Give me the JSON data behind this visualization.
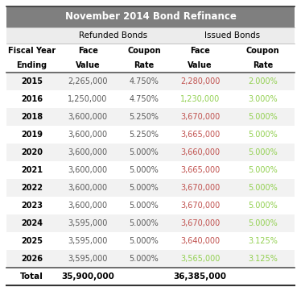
{
  "title": "November 2014 Bond Refinance",
  "title_bg": "#7f7f7f",
  "title_color": "#ffffff",
  "rows": [
    [
      "2015",
      "2,265,000",
      "4.750%",
      "2,280,000",
      "2.000%"
    ],
    [
      "2016",
      "1,250,000",
      "4.750%",
      "1,230,000",
      "3.000%"
    ],
    [
      "2018",
      "3,600,000",
      "5.250%",
      "3,670,000",
      "5.000%"
    ],
    [
      "2019",
      "3,600,000",
      "5.250%",
      "3,665,000",
      "5.000%"
    ],
    [
      "2020",
      "3,600,000",
      "5.000%",
      "3,660,000",
      "5.000%"
    ],
    [
      "2021",
      "3,600,000",
      "5.000%",
      "3,665,000",
      "5.000%"
    ],
    [
      "2022",
      "3,600,000",
      "5.000%",
      "3,670,000",
      "5.000%"
    ],
    [
      "2023",
      "3,600,000",
      "5.000%",
      "3,670,000",
      "5.000%"
    ],
    [
      "2024",
      "3,595,000",
      "5.000%",
      "3,670,000",
      "5.000%"
    ],
    [
      "2025",
      "3,595,000",
      "5.000%",
      "3,640,000",
      "3.125%"
    ],
    [
      "2026",
      "3,595,000",
      "5.000%",
      "3,565,000",
      "3.125%"
    ]
  ],
  "total_row": [
    "Total",
    "35,900,000",
    "",
    "36,385,000",
    ""
  ],
  "issued_face_colors": [
    "#c0504d",
    "#92d050",
    "#c0504d",
    "#c0504d",
    "#c0504d",
    "#c0504d",
    "#c0504d",
    "#c0504d",
    "#c0504d",
    "#c0504d",
    "#92d050"
  ],
  "issued_coupon_colors": [
    "#92d050",
    "#92d050",
    "#92d050",
    "#92d050",
    "#92d050",
    "#92d050",
    "#92d050",
    "#92d050",
    "#92d050",
    "#92d050",
    "#92d050"
  ],
  "refunded_color": "#595959",
  "figsize": [
    3.74,
    3.56
  ],
  "dpi": 100
}
